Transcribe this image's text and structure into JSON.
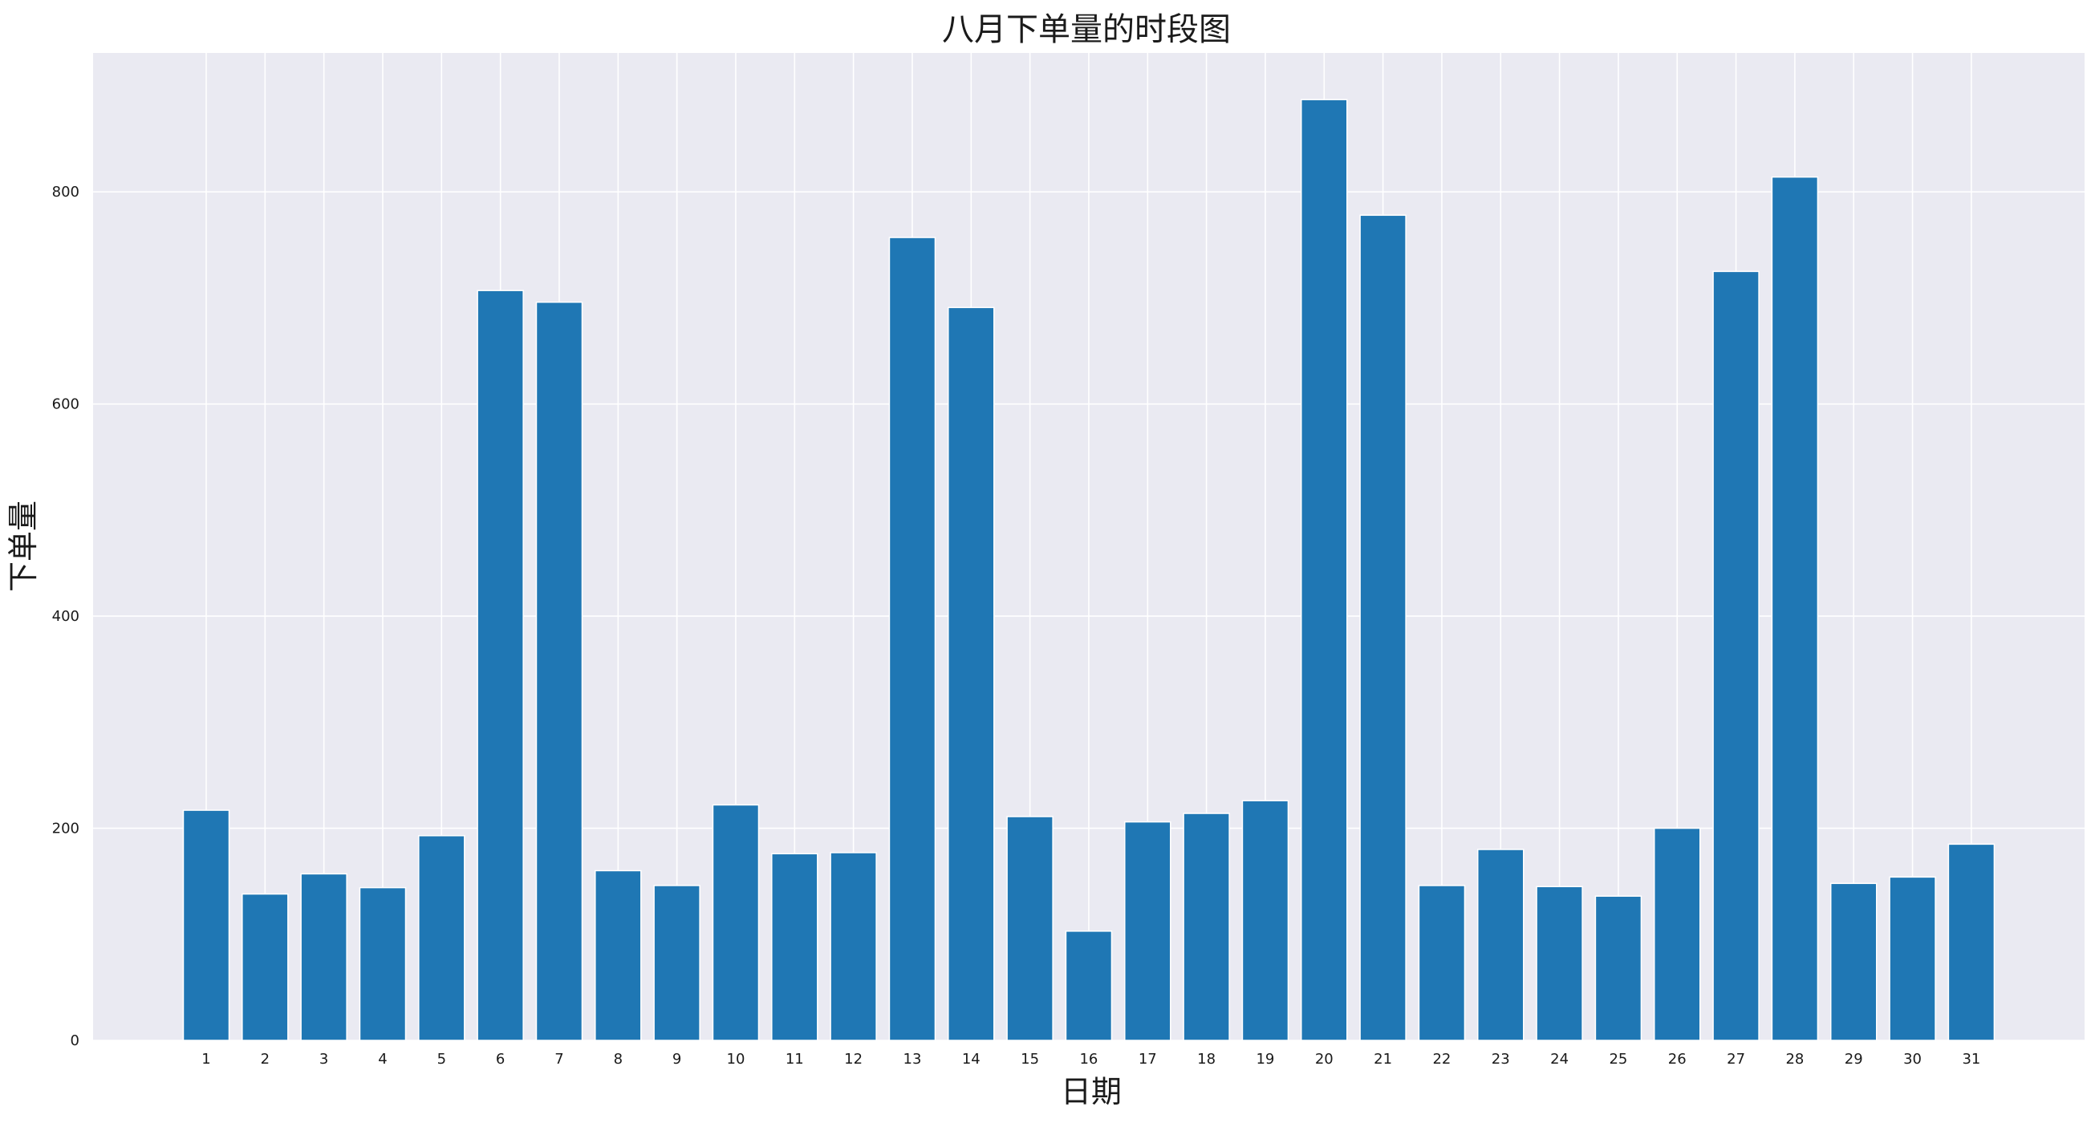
{
  "chart_data": {
    "type": "bar",
    "title": "八月下单量的时段图",
    "xlabel": "日期",
    "ylabel": "下单量",
    "categories": [
      "1",
      "2",
      "3",
      "4",
      "5",
      "6",
      "7",
      "8",
      "9",
      "10",
      "11",
      "12",
      "13",
      "14",
      "15",
      "16",
      "17",
      "18",
      "19",
      "20",
      "21",
      "22",
      "23",
      "24",
      "25",
      "26",
      "27",
      "28",
      "29",
      "30",
      "31"
    ],
    "values": [
      217,
      138,
      157,
      144,
      193,
      707,
      696,
      160,
      146,
      222,
      176,
      177,
      757,
      691,
      211,
      103,
      206,
      214,
      226,
      887,
      778,
      146,
      180,
      145,
      136,
      200,
      725,
      814,
      148,
      154,
      185
    ],
    "yticks": [
      0,
      200,
      400,
      600,
      800
    ],
    "ylim": [
      0,
      931
    ],
    "grid": true,
    "legend": "none",
    "colors": {
      "bar": "#1f77b4",
      "plot_background": "#eaeaf2",
      "grid": "#ffffff"
    }
  }
}
